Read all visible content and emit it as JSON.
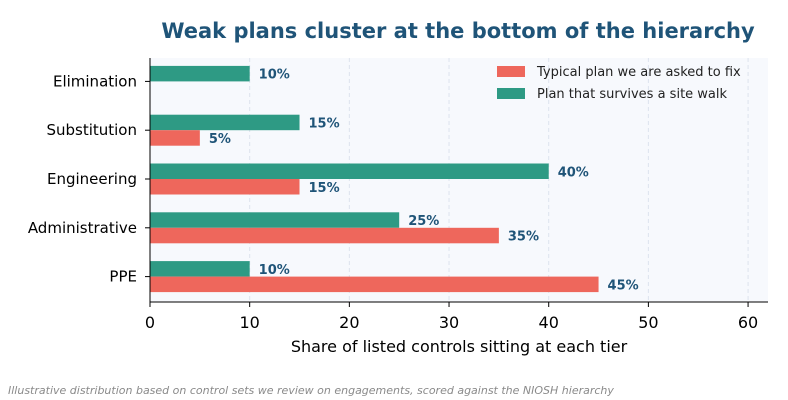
{
  "chart_data": {
    "type": "bar",
    "orientation": "horizontal",
    "title": "Weak plans cluster at the bottom of the hierarchy",
    "xlabel": "Share of listed controls sitting at each tier",
    "ylabel": "",
    "categories": [
      "Elimination",
      "Substitution",
      "Engineering",
      "Administrative",
      "PPE"
    ],
    "series": [
      {
        "name": "Typical plan we are asked to fix",
        "color": "#ee675c",
        "values": [
          0,
          5,
          15,
          35,
          45
        ],
        "labels": [
          "",
          "5%",
          "15%",
          "35%",
          "45%"
        ]
      },
      {
        "name": "Plan that survives a site walk",
        "color": "#2e9a84",
        "values": [
          10,
          15,
          40,
          25,
          10
        ],
        "labels": [
          "10%",
          "15%",
          "40%",
          "25%",
          "10%"
        ]
      }
    ],
    "xlim": [
      0,
      62
    ],
    "xticks": [
      0,
      10,
      20,
      30,
      40,
      50,
      60
    ],
    "xtick_labels": [
      "0",
      "10",
      "20",
      "30",
      "40",
      "50",
      "60"
    ],
    "grid": true,
    "legend_position": "top-right"
  },
  "caption": "Illustrative distribution based on control sets we review on engagements, scored against the NIOSH hierarchy",
  "colors": {
    "title": "#1f5478",
    "label_text": "#1f5478",
    "plot_bg": "#f7f9fd",
    "grid": "#dde3ee"
  }
}
